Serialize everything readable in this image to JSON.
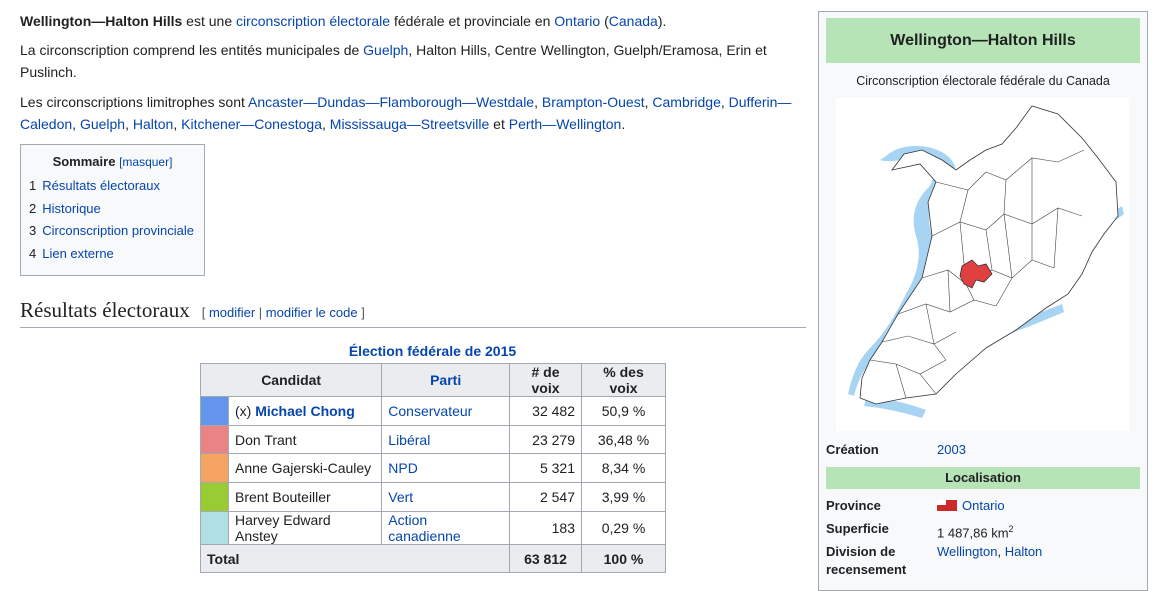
{
  "article": {
    "intro": {
      "bold_name": "Wellington—Halton Hills",
      "t1": " est une ",
      "link_circ": "circonscription électorale",
      "t2": " fédérale et provinciale en ",
      "link_ontario": "Ontario",
      "t3": " (",
      "link_canada": "Canada",
      "t4": ")."
    },
    "para2": {
      "t1": "La circonscription comprend les entités municipales de ",
      "link_guelph": "Guelph",
      "t2": ", Halton Hills, Centre Wellington, Guelph/Eramosa, Erin et Puslinch."
    },
    "para3": {
      "t1": "Les circonscriptions limitrophes sont ",
      "links": [
        "Ancaster—Dundas—Flamborough—Westdale",
        "Brampton-Ouest",
        "Cambridge",
        "Dufferin—Caledon",
        "Guelph",
        "Halton",
        "Kitchener—Conestoga",
        "Mississauga—Streetsville",
        "Perth—Wellington"
      ],
      "sep": ", ",
      "and": " et ",
      "end": "."
    }
  },
  "toc": {
    "title": "Sommaire",
    "toggle": "[masquer]",
    "items": [
      {
        "num": "1",
        "label": "Résultats électoraux"
      },
      {
        "num": "2",
        "label": "Historique"
      },
      {
        "num": "3",
        "label": "Circonscription provinciale"
      },
      {
        "num": "4",
        "label": "Lien externe"
      }
    ]
  },
  "section": {
    "title": "Résultats électoraux",
    "open": "[ ",
    "edit": "modifier",
    "sep": " | ",
    "edit_code": "modifier le code",
    "close": " ]"
  },
  "results": {
    "caption": "Élection fédérale de 2015",
    "headers": {
      "candidate": "Candidat",
      "party": "Parti",
      "votes": "# de voix",
      "pct": "% des voix"
    },
    "rows": [
      {
        "color": "#6495ed",
        "prefix": "(x) ",
        "candidate": "Michael Chong",
        "bold_link": true,
        "party": "Conservateur",
        "votes": "32 482",
        "pct": "50,9 %"
      },
      {
        "color": "#ea8383",
        "prefix": "",
        "candidate": "Don Trant",
        "bold_link": false,
        "party": "Libéral",
        "votes": "23 279",
        "pct": "36,48 %"
      },
      {
        "color": "#f4a460",
        "prefix": "",
        "candidate": "Anne Gajerski-Cauley",
        "bold_link": false,
        "party": "NPD",
        "votes": "5 321",
        "pct": "8,34 %"
      },
      {
        "color": "#99cc33",
        "prefix": "",
        "candidate": "Brent Bouteiller",
        "bold_link": false,
        "party": "Vert",
        "votes": "2 547",
        "pct": "3,99 %"
      },
      {
        "color": "#b0e0e6",
        "prefix": "",
        "candidate": "Harvey Edward Anstey",
        "bold_link": false,
        "party": "Action canadienne",
        "votes": "183",
        "pct": "0,29 %"
      }
    ],
    "total": {
      "label": "Total",
      "votes": "63 812",
      "pct": "100 %"
    }
  },
  "infobox": {
    "title": "Wellington—Halton Hills",
    "subtitle": "Circonscription électorale fédérale du Canada",
    "creation_label": "Création",
    "creation_value": "2003",
    "section_localisation": "Localisation",
    "province_label": "Province",
    "province_value": "Ontario",
    "superficie_label": "Superficie",
    "superficie_value": "1 487,86 km",
    "superficie_sup": "2",
    "division_label": "Division de recensement",
    "division_values": [
      "Wellington",
      "Halton"
    ],
    "division_sep": ", "
  },
  "colors": {
    "link": "#0645ad",
    "infobox_header": "#b7e4b7",
    "map_highlight": "#e04040",
    "map_water": "#a8d4f4"
  }
}
